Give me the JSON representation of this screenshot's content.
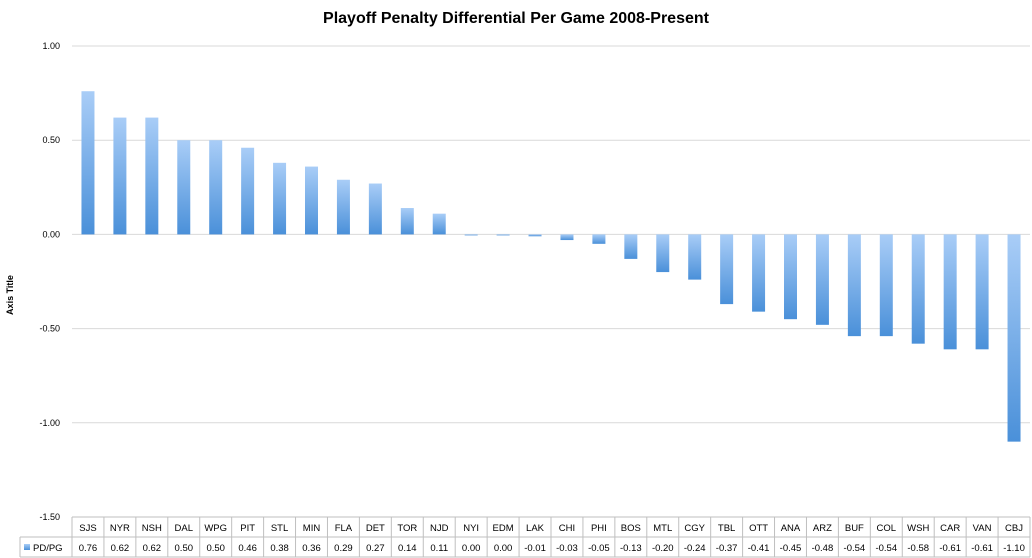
{
  "chart_data": {
    "type": "bar",
    "title": "Playoff Penalty Differential Per Game 2008-Present",
    "ylabel": "Axis Title",
    "xlabel": "",
    "ylim": [
      -1.5,
      1.0
    ],
    "yticks": [
      "1.00",
      "0.50",
      "0.00",
      "-0.50",
      "-1.00",
      "-1.50"
    ],
    "ytick_values": [
      1.0,
      0.5,
      0.0,
      -0.5,
      -1.0,
      -1.5
    ],
    "grid": true,
    "legend_position": "data-table",
    "categories": [
      "SJS",
      "NYR",
      "NSH",
      "DAL",
      "WPG",
      "PIT",
      "STL",
      "MIN",
      "FLA",
      "DET",
      "TOR",
      "NJD",
      "NYI",
      "EDM",
      "LAK",
      "CHI",
      "PHI",
      "BOS",
      "MTL",
      "CGY",
      "TBL",
      "OTT",
      "ANA",
      "ARZ",
      "BUF",
      "COL",
      "WSH",
      "CAR",
      "VAN",
      "CBJ"
    ],
    "series": [
      {
        "name": "PD/PG",
        "values": [
          0.76,
          0.62,
          0.62,
          0.5,
          0.5,
          0.46,
          0.38,
          0.36,
          0.29,
          0.27,
          0.14,
          0.11,
          0.0,
          0.0,
          -0.01,
          -0.03,
          -0.05,
          -0.13,
          -0.2,
          -0.24,
          -0.37,
          -0.41,
          -0.45,
          -0.48,
          -0.54,
          -0.54,
          -0.58,
          -0.61,
          -0.61,
          -1.1
        ],
        "value_labels": [
          "0.76",
          "0.62",
          "0.62",
          "0.50",
          "0.50",
          "0.46",
          "0.38",
          "0.36",
          "0.29",
          "0.27",
          "0.14",
          "0.11",
          "0.00",
          "0.00",
          "-0.01",
          "-0.03",
          "-0.05",
          "-0.13",
          "-0.20",
          "-0.24",
          "-0.37",
          "-0.41",
          "-0.45",
          "-0.48",
          "-0.54",
          "-0.54",
          "-0.58",
          "-0.61",
          "-0.61",
          "-1.10"
        ]
      }
    ],
    "colors": {
      "bar_light": "#a9cdf7",
      "bar_dark": "#4a90d9",
      "grid": "#d9d9d9",
      "table_border": "#bfbfbf"
    }
  }
}
